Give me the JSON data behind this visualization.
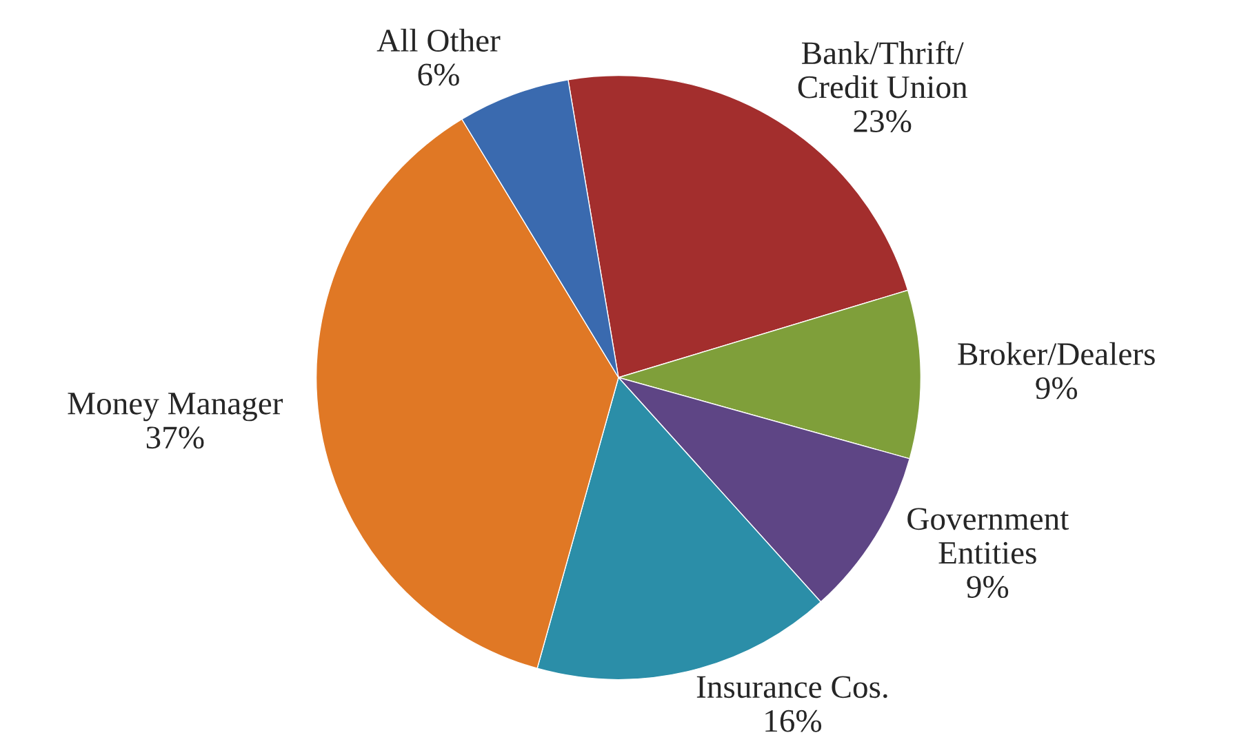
{
  "chart_data": {
    "type": "pie",
    "categories": [
      "Bank/Thrift/\nCredit Union",
      "Broker/Dealers",
      "Government\nEntities",
      "Insurance Cos.",
      "Money Manager",
      "All Other"
    ],
    "values": [
      23,
      9,
      9,
      16,
      37,
      6
    ],
    "value_labels": [
      "23%",
      "9%",
      "9%",
      "16%",
      "37%",
      "6%"
    ],
    "colors": [
      "#a32e2d",
      "#7f9f3a",
      "#5e4585",
      "#2b8ea8",
      "#e07825",
      "#3a6aaf"
    ],
    "legend": false
  }
}
